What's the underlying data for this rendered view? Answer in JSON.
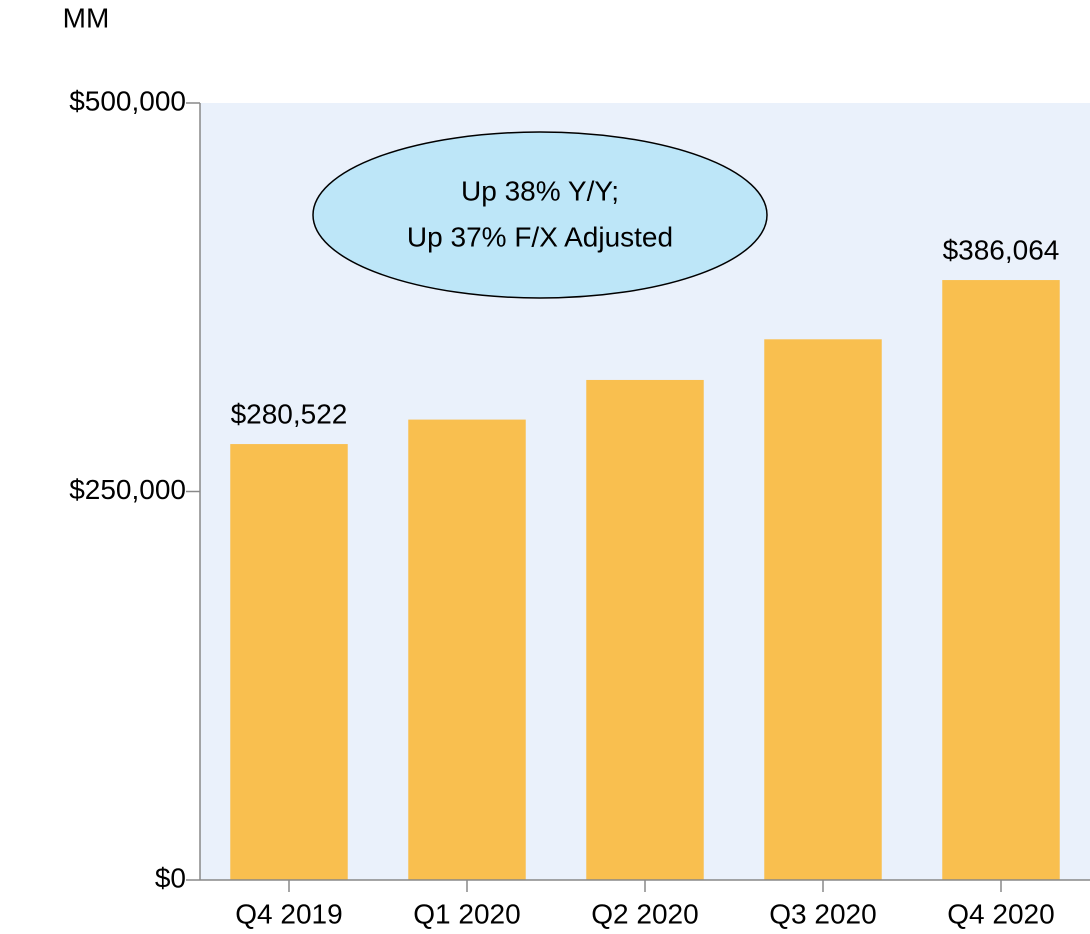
{
  "chart_data": {
    "type": "bar",
    "ylabel": "MM",
    "categories": [
      "Q4 2019",
      "Q1 2020",
      "Q2 2020",
      "Q3 2020",
      "Q4 2020"
    ],
    "values": [
      280522,
      296274,
      321782,
      347945,
      386064
    ],
    "value_labels": [
      "$280,522",
      null,
      null,
      null,
      "$386,064"
    ],
    "color": "#f9bf4f",
    "ylim": [
      0,
      500000
    ],
    "yticks": [
      {
        "value": 0,
        "label": "$0"
      },
      {
        "value": 250000,
        "label": "$250,000"
      },
      {
        "value": 500000,
        "label": "$500,000"
      }
    ],
    "annotation": [
      "Up 38% Y/Y;",
      "Up 37% F/X Adjusted"
    ]
  }
}
